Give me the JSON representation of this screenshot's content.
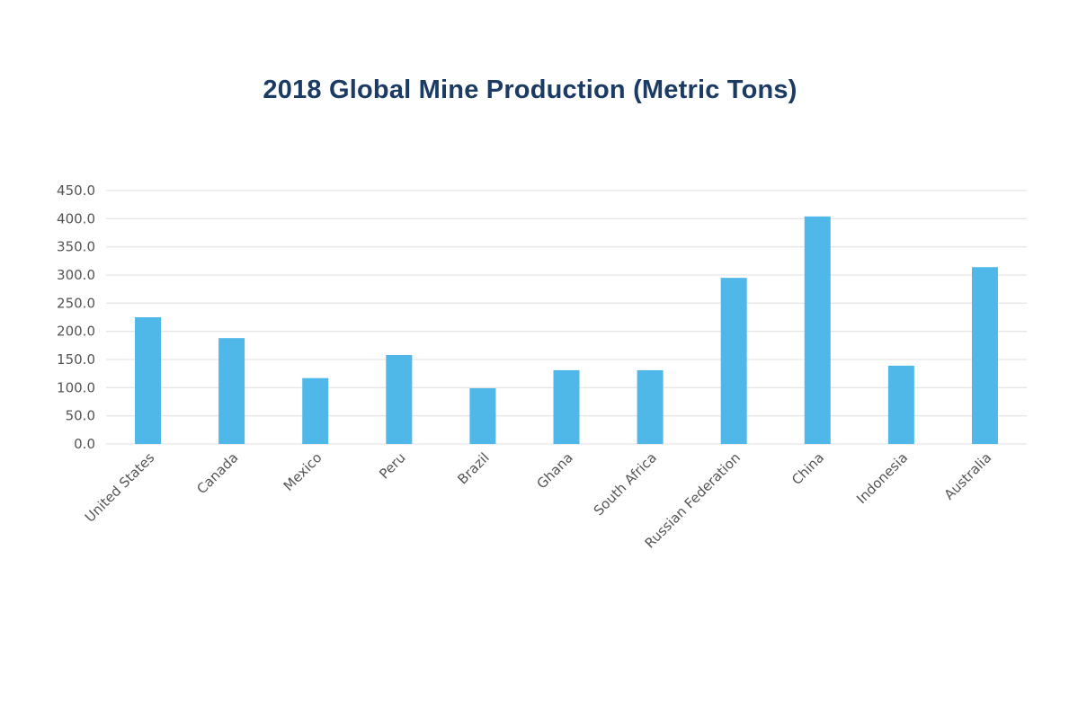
{
  "chart_data": {
    "type": "bar",
    "title": "2018 Global Mine Production (Metric Tons)",
    "xlabel": "",
    "ylabel": "",
    "ylim": [
      0,
      450
    ],
    "yticks": [
      "0.0",
      "50.0",
      "100.0",
      "150.0",
      "200.0",
      "250.0",
      "300.0",
      "350.0",
      "400.0",
      "450.0"
    ],
    "grid": true,
    "legend": "none",
    "bar_color": "#4fb8e8",
    "categories": [
      "United States",
      "Canada",
      "Mexico",
      "Peru",
      "Brazil",
      "Ghana",
      "South Africa",
      "Russian Federation",
      "China",
      "Indonesia",
      "Australia"
    ],
    "values": [
      225,
      188,
      117,
      158,
      99,
      131,
      131,
      295,
      404,
      139,
      314
    ]
  }
}
